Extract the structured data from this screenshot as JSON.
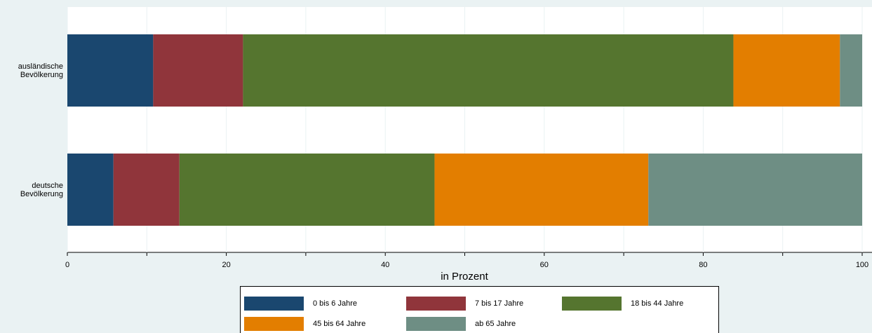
{
  "chart_data": {
    "type": "stacked_barh",
    "categories": [
      "ausländische Bevölkerung",
      "deutsche Bevölkerung"
    ],
    "series": [
      {
        "name": "0 bis 6 Jahre",
        "color": "#1a476f",
        "values": [
          10.8,
          5.8
        ]
      },
      {
        "name": "7 bis 17 Jahre",
        "color": "#90353b",
        "values": [
          11.3,
          8.3
        ]
      },
      {
        "name": "18 bis 44 Jahre",
        "color": "#55752f",
        "values": [
          61.7,
          32.1
        ]
      },
      {
        "name": "45 bis 64 Jahre",
        "color": "#e37e00",
        "values": [
          13.4,
          26.9
        ]
      },
      {
        "name": "ab 65 Jahre",
        "color": "#6e8e84",
        "values": [
          2.8,
          26.9
        ]
      }
    ],
    "xlabel": "in Prozent",
    "xlim": [
      0,
      100
    ],
    "xticks": [
      0,
      20,
      40,
      60,
      80,
      100
    ],
    "xticks_minor": [
      10,
      30,
      50,
      70,
      90
    ],
    "grid": true,
    "legend": "bottom"
  }
}
